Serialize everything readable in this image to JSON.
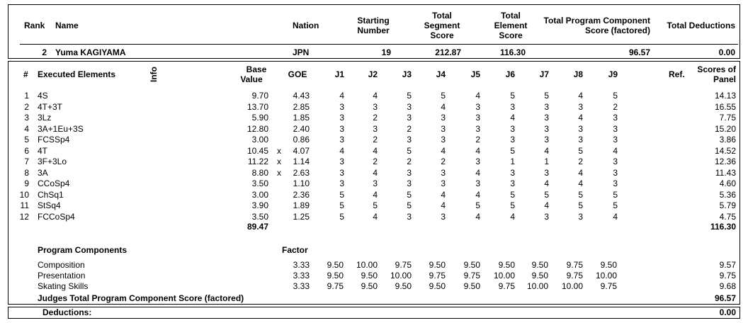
{
  "header": {
    "rank_label": "Rank",
    "name_label": "Name",
    "nation_label": "Nation",
    "starting_label": [
      "Starting",
      "Number"
    ],
    "tss_label": [
      "Total",
      "Segment",
      "Score"
    ],
    "tes_label": [
      "Total",
      "Element",
      "Score"
    ],
    "tpcs_label": [
      "Total Program Component",
      "Score (factored)"
    ],
    "ded_label": "Total Deductions"
  },
  "skater": {
    "rank": "2",
    "name": "Yuma KAGIYAMA",
    "nation": "JPN",
    "starting_number": "19",
    "total_segment_score": "212.87",
    "total_element_score": "116.30",
    "total_pcs": "96.57",
    "total_deductions": "0.00"
  },
  "elements_header": {
    "num": "#",
    "executed": "Executed Elements",
    "info": "Info",
    "base_value": [
      "Base",
      "Value"
    ],
    "goe": "GOE",
    "judges": [
      "J1",
      "J2",
      "J3",
      "J4",
      "J5",
      "J6",
      "J7",
      "J8",
      "J9"
    ],
    "ref": "Ref.",
    "scores": [
      "Scores of",
      "Panel"
    ]
  },
  "elements": [
    {
      "num": "1",
      "name": "4S",
      "base": "9.70",
      "x": "",
      "goe": "4.43",
      "j": [
        "4",
        "4",
        "5",
        "5",
        "4",
        "5",
        "5",
        "4",
        "5"
      ],
      "score": "14.13"
    },
    {
      "num": "2",
      "name": "4T+3T",
      "base": "13.70",
      "x": "",
      "goe": "2.85",
      "j": [
        "3",
        "3",
        "3",
        "4",
        "3",
        "3",
        "3",
        "3",
        "2"
      ],
      "score": "16.55"
    },
    {
      "num": "3",
      "name": "3Lz",
      "base": "5.90",
      "x": "",
      "goe": "1.85",
      "j": [
        "3",
        "2",
        "3",
        "3",
        "3",
        "4",
        "3",
        "4",
        "3"
      ],
      "score": "7.75"
    },
    {
      "num": "4",
      "name": "3A+1Eu+3S",
      "base": "12.80",
      "x": "",
      "goe": "2.40",
      "j": [
        "3",
        "3",
        "2",
        "3",
        "3",
        "3",
        "3",
        "3",
        "3"
      ],
      "score": "15.20"
    },
    {
      "num": "5",
      "name": "FCSSp4",
      "base": "3.00",
      "x": "",
      "goe": "0.86",
      "j": [
        "3",
        "2",
        "3",
        "3",
        "2",
        "3",
        "3",
        "3",
        "3"
      ],
      "score": "3.86"
    },
    {
      "num": "6",
      "name": "4T",
      "base": "10.45",
      "x": "x",
      "goe": "4.07",
      "j": [
        "4",
        "4",
        "5",
        "4",
        "4",
        "5",
        "4",
        "5",
        "4"
      ],
      "score": "14.52"
    },
    {
      "num": "7",
      "name": "3F+3Lo",
      "base": "11.22",
      "x": "x",
      "goe": "1.14",
      "j": [
        "3",
        "2",
        "2",
        "2",
        "3",
        "1",
        "1",
        "2",
        "3"
      ],
      "score": "12.36"
    },
    {
      "num": "8",
      "name": "3A",
      "base": "8.80",
      "x": "x",
      "goe": "2.63",
      "j": [
        "3",
        "4",
        "3",
        "3",
        "4",
        "3",
        "3",
        "4",
        "3"
      ],
      "score": "11.43"
    },
    {
      "num": "9",
      "name": "CCoSp4",
      "base": "3.50",
      "x": "",
      "goe": "1.10",
      "j": [
        "3",
        "3",
        "3",
        "3",
        "3",
        "3",
        "4",
        "4",
        "3"
      ],
      "score": "4.60"
    },
    {
      "num": "10",
      "name": "ChSq1",
      "base": "3.00",
      "x": "",
      "goe": "2.36",
      "j": [
        "5",
        "4",
        "5",
        "4",
        "4",
        "5",
        "5",
        "5",
        "5"
      ],
      "score": "5.36"
    },
    {
      "num": "11",
      "name": "StSq4",
      "base": "3.90",
      "x": "",
      "goe": "1.89",
      "j": [
        "5",
        "5",
        "5",
        "4",
        "5",
        "5",
        "4",
        "5",
        "5"
      ],
      "score": "5.79"
    },
    {
      "num": "12",
      "name": "FCCoSp4",
      "base": "3.50",
      "x": "",
      "goe": "1.25",
      "j": [
        "5",
        "4",
        "3",
        "3",
        "4",
        "4",
        "3",
        "3",
        "4"
      ],
      "score": "4.75"
    }
  ],
  "elements_totals": {
    "base_total": "89.47",
    "score_total": "116.30"
  },
  "components": {
    "title": "Program Components",
    "factor_label": "Factor",
    "rows": [
      {
        "name": "Composition",
        "factor": "3.33",
        "j": [
          "9.50",
          "10.00",
          "9.75",
          "9.50",
          "9.50",
          "9.50",
          "9.50",
          "9.75",
          "9.50"
        ],
        "score": "9.57"
      },
      {
        "name": "Presentation",
        "factor": "3.33",
        "j": [
          "9.50",
          "9.50",
          "10.00",
          "9.75",
          "9.75",
          "10.00",
          "9.50",
          "9.75",
          "10.00"
        ],
        "score": "9.75"
      },
      {
        "name": "Skating Skills",
        "factor": "3.33",
        "j": [
          "9.75",
          "9.50",
          "9.50",
          "9.50",
          "9.50",
          "9.75",
          "10.00",
          "10.00",
          "9.75"
        ],
        "score": "9.68"
      }
    ],
    "total_label": "Judges Total Program Component Score (factored)",
    "total": "96.57"
  },
  "deductions": {
    "label": "Deductions:",
    "value": "0.00"
  }
}
